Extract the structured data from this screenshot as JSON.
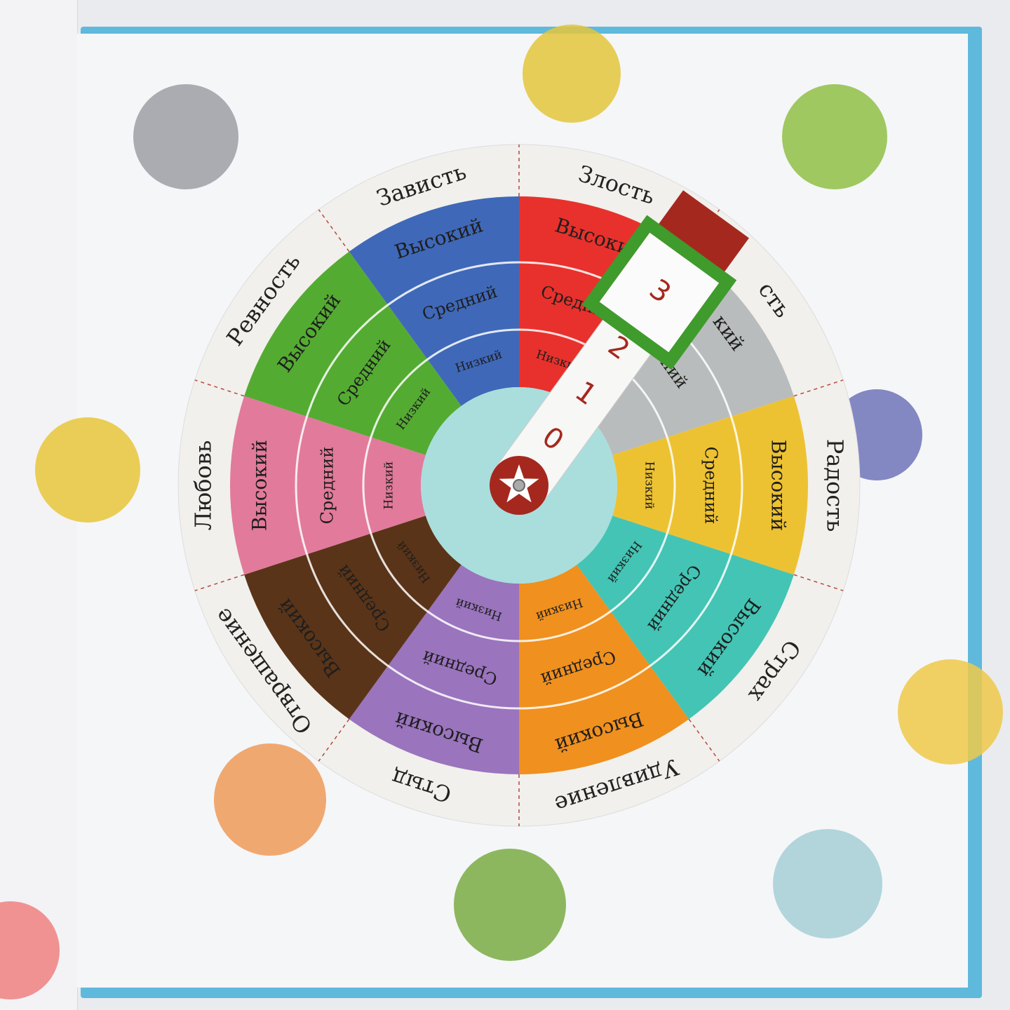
{
  "wheel": {
    "sectors": [
      {
        "emotion": "Злость",
        "color": "#e8312c",
        "levels": [
          "Низкий",
          "Средний",
          "Высокий"
        ]
      },
      {
        "emotion": "сть",
        "color": "#b9bcbc",
        "levels": [
          "",
          "ний",
          "кий"
        ]
      },
      {
        "emotion": "Радость",
        "color": "#edc232",
        "levels": [
          "Низкий",
          "Средний",
          "Высокий"
        ]
      },
      {
        "emotion": "Страх",
        "color": "#44c4b4",
        "levels": [
          "Низкий",
          "Средний",
          "Высокий"
        ]
      },
      {
        "emotion": "Удивление",
        "color": "#f0901e",
        "levels": [
          "Низкий",
          "Средний",
          "Высокий"
        ]
      },
      {
        "emotion": "Стыд",
        "color": "#9a74bd",
        "levels": [
          "Низкий",
          "Средний",
          "Высокий"
        ]
      },
      {
        "emotion": "Отвращение",
        "color": "#5a3418",
        "levels": [
          "Низкий",
          "Средний",
          "Высокий"
        ]
      },
      {
        "emotion": "Любовь",
        "color": "#e27a9c",
        "levels": [
          "Низкий",
          "Средний",
          "Высокий"
        ]
      },
      {
        "emotion": "Ревность",
        "color": "#54ab32",
        "levels": [
          "Низкий",
          "Средний",
          "Высокий"
        ]
      },
      {
        "emotion": "Зависть",
        "color": "#3f68b8",
        "levels": [
          "Низкий",
          "Средний",
          "Высокий"
        ]
      }
    ],
    "center_color": "#a9dedd",
    "pointer": {
      "numbers": [
        "0",
        "1",
        "2",
        "3"
      ],
      "selected": "3",
      "frame_color": "#3e9b2c",
      "tab_color": "#a5281e",
      "number_color": "#a5281e"
    }
  },
  "dots": [
    {
      "color": "#9c9fa6"
    },
    {
      "color": "#e3c63c"
    },
    {
      "color": "#8fbf47"
    },
    {
      "color": "#e8c63a"
    },
    {
      "color": "#6e73b8"
    },
    {
      "color": "#efc949"
    },
    {
      "color": "#ee9a59"
    },
    {
      "color": "#79ac44"
    },
    {
      "color": "#a5cfd6"
    },
    {
      "color": "#ef8080"
    }
  ]
}
